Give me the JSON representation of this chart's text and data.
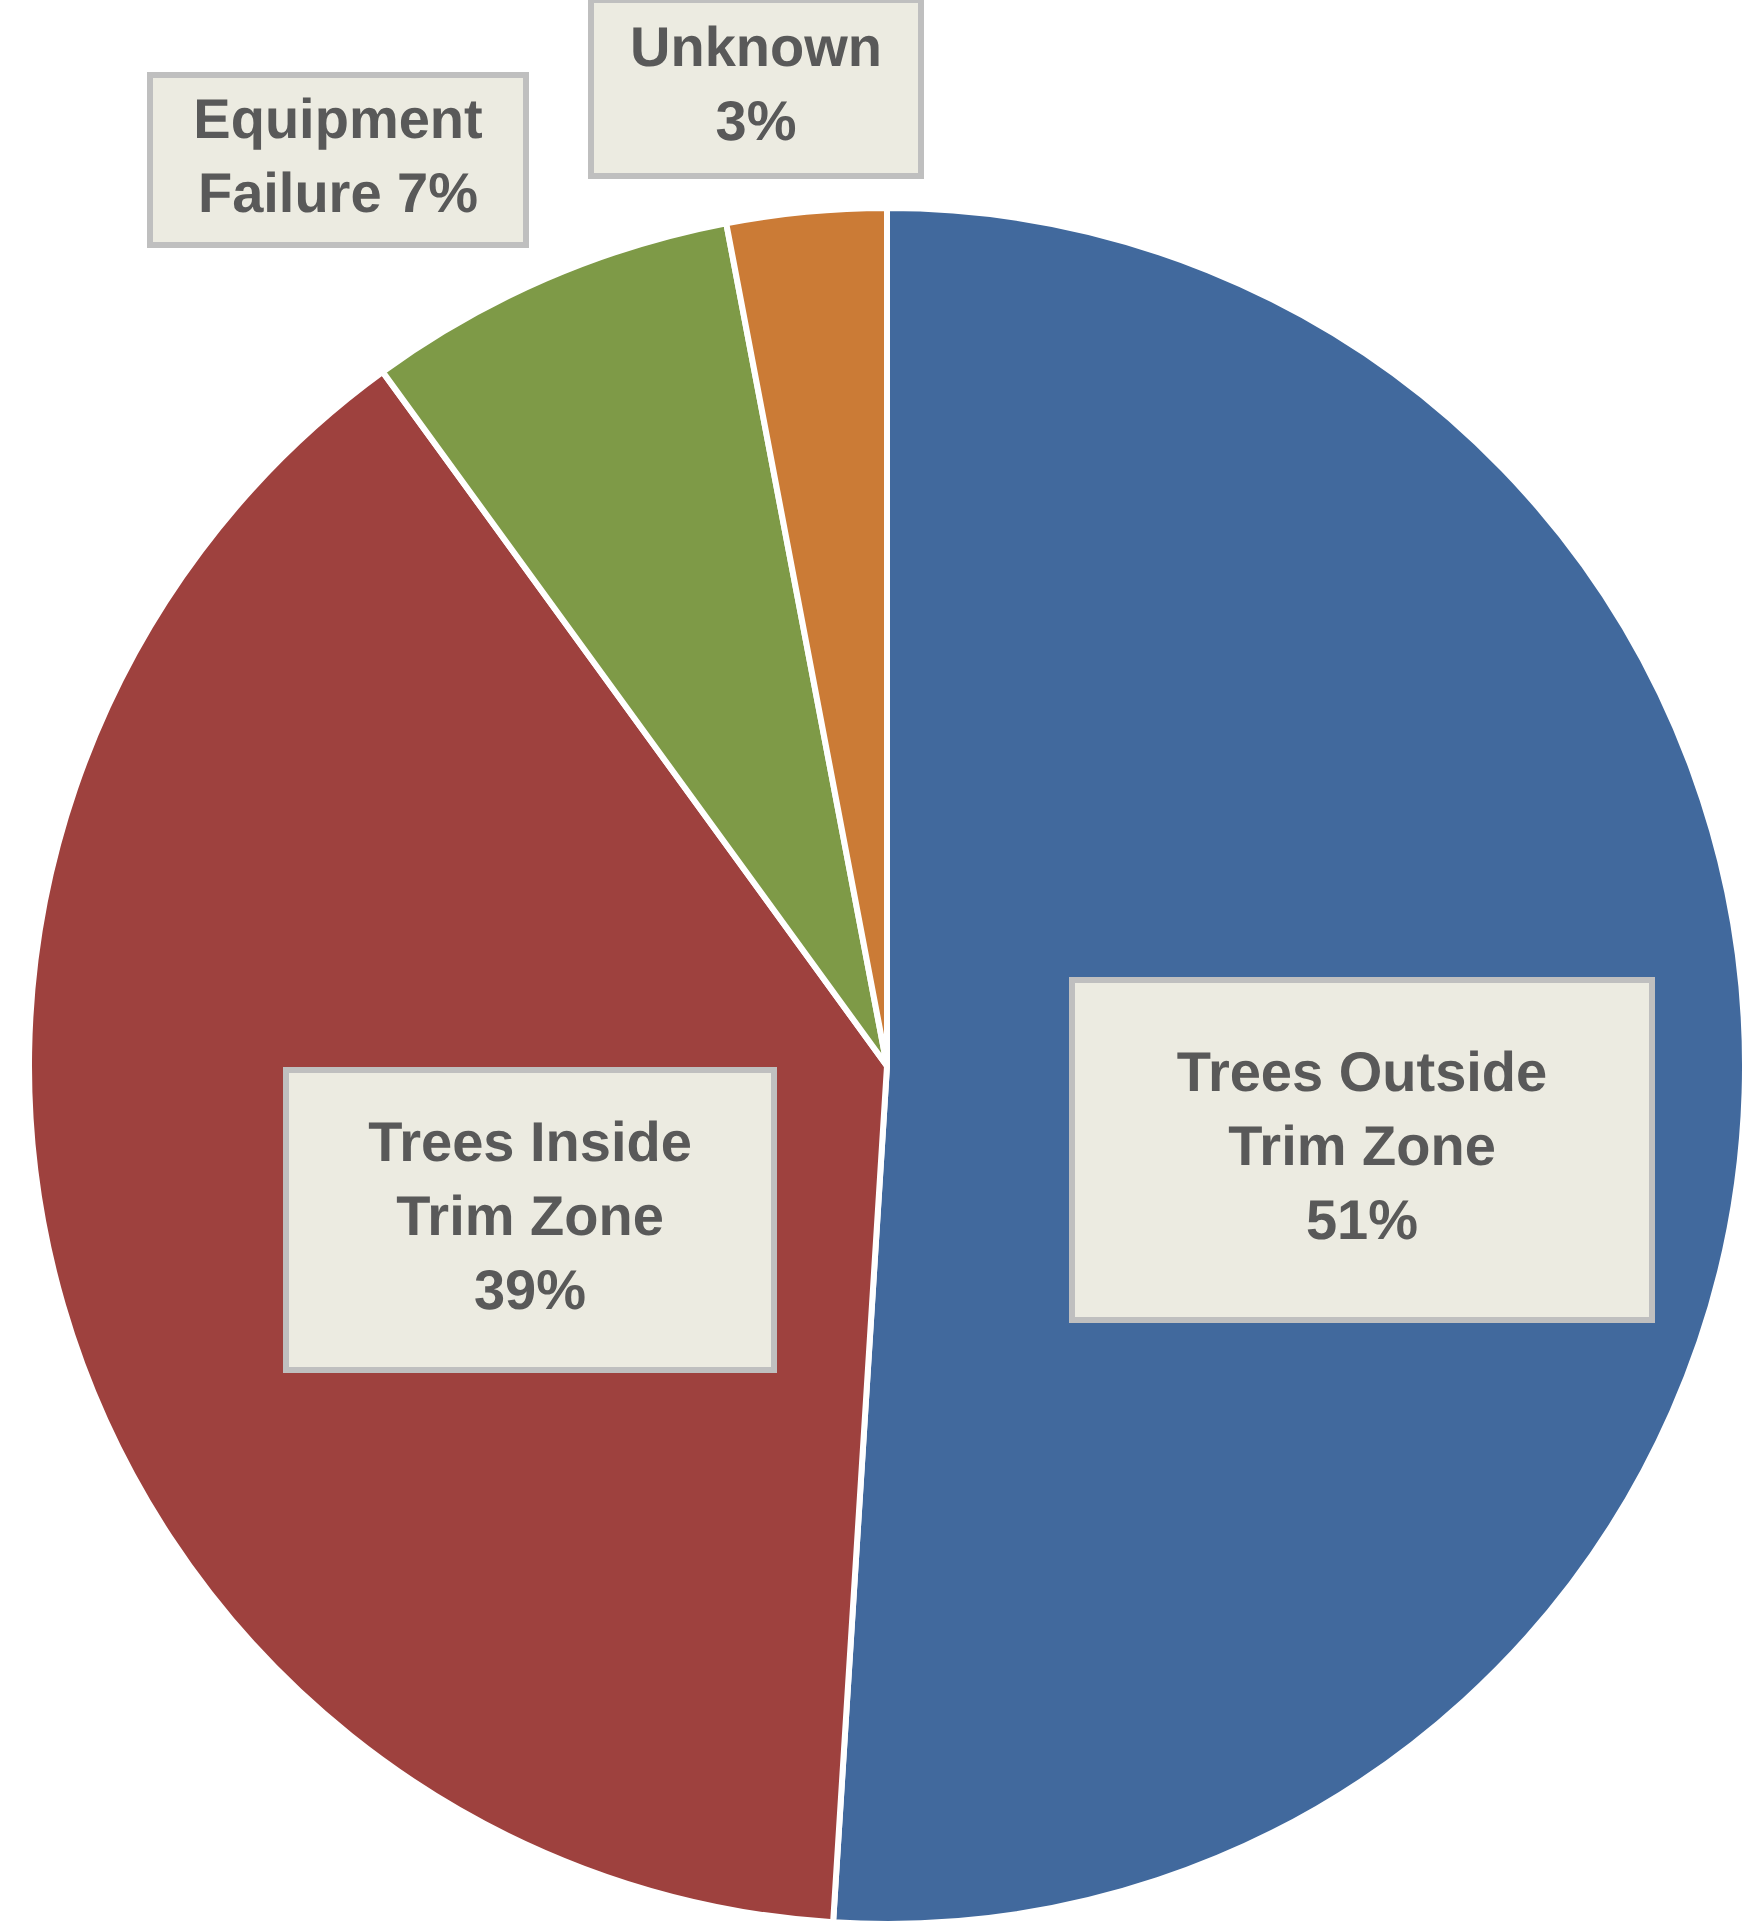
{
  "chart_data": {
    "type": "pie",
    "categories": [
      "Trees Outside Trim Zone",
      "Trees Inside Trim Zone",
      "Equipment Failure",
      "Unknown"
    ],
    "values": [
      51,
      39,
      7,
      3
    ],
    "colors": [
      "#41699d",
      "#9e413e",
      "#7e9a47",
      "#cb7b36"
    ],
    "value_labels": [
      "51%",
      "39%",
      "7%",
      "3%"
    ],
    "legend": false
  }
}
